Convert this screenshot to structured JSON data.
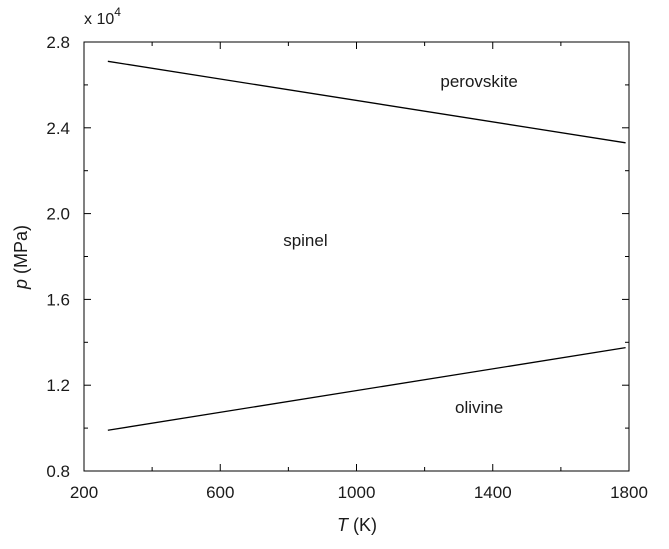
{
  "chart_data": {
    "type": "line",
    "xlabel_var": "T",
    "xlabel_unit": " (K)",
    "ylabel_var": "p",
    "ylabel_unit": " (MPa)",
    "y_multiplier_base": "x 10",
    "y_multiplier_exp": "4",
    "xlim": [
      200,
      1800
    ],
    "ylim": [
      0.8,
      2.8
    ],
    "x_ticks": [
      200,
      600,
      1000,
      1400,
      1800
    ],
    "x_tick_labels": [
      "200",
      "600",
      "1000",
      "1400",
      "1800"
    ],
    "y_ticks": [
      0.8,
      1.2,
      1.6,
      2.0,
      2.4,
      2.8
    ],
    "y_tick_labels": [
      "0.8",
      "1.2",
      "1.6",
      "2.0",
      "2.4",
      "2.8"
    ],
    "grid": false,
    "series": [
      {
        "x": [
          270,
          1790
        ],
        "y": [
          2.71,
          2.33
        ],
        "color": "#000000"
      },
      {
        "x": [
          270,
          1790
        ],
        "y": [
          0.99,
          1.375
        ],
        "color": "#000000"
      }
    ],
    "annotations": [
      {
        "text": "perovskite",
        "x": 1360,
        "y": 2.59
      },
      {
        "text": "spinel",
        "x": 850,
        "y": 1.85
      },
      {
        "text": "olivine",
        "x": 1360,
        "y": 1.07
      }
    ]
  }
}
